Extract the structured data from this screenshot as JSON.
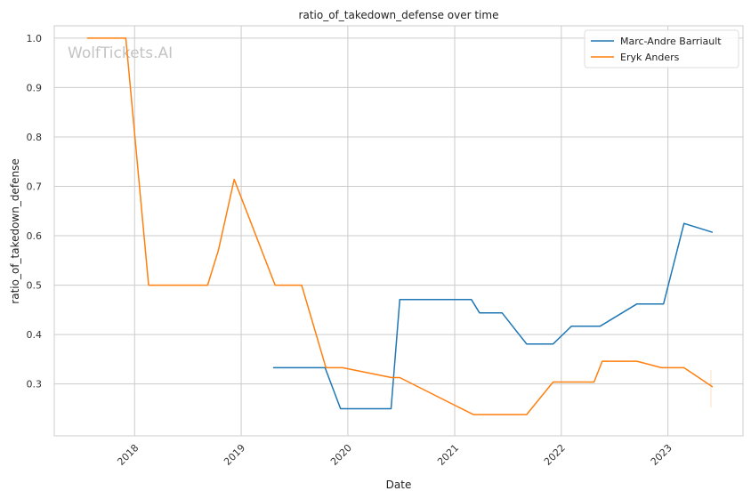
{
  "watermark": "WolfTickets.AI",
  "chart_data": {
    "type": "line",
    "title": "ratio_of_takedown_defense over time",
    "xlabel": "Date",
    "ylabel": "ratio_of_takedown_defense",
    "x_ticks": [
      "2018",
      "2019",
      "2020",
      "2021",
      "2022",
      "2023"
    ],
    "y_ticks": [
      "0.3",
      "0.4",
      "0.5",
      "0.6",
      "0.7",
      "0.8",
      "0.9",
      "1.0"
    ],
    "xlim": [
      "2017-04-01",
      "2023-09-15"
    ],
    "ylim": [
      0.195,
      1.025
    ],
    "grid": true,
    "legend_position": "top-right",
    "series": [
      {
        "name": "Marc-Andre Barriault",
        "color": "#1f77b4",
        "points": [
          [
            "2019-04-20",
            0.333
          ],
          [
            "2019-07-20",
            0.333
          ],
          [
            "2019-10-15",
            0.333
          ],
          [
            "2019-12-07",
            0.25
          ],
          [
            "2020-05-28",
            0.25
          ],
          [
            "2020-06-27",
            0.471
          ],
          [
            "2021-02-27",
            0.471
          ],
          [
            "2021-03-27",
            0.444
          ],
          [
            "2021-06-12",
            0.444
          ],
          [
            "2021-09-04",
            0.381
          ],
          [
            "2021-12-04",
            0.381
          ],
          [
            "2022-02-05",
            0.417
          ],
          [
            "2022-05-14",
            0.417
          ],
          [
            "2022-09-17",
            0.462
          ],
          [
            "2022-12-17",
            0.462
          ],
          [
            "2023-02-25",
            0.625
          ],
          [
            "2023-06-03",
            0.607
          ]
        ]
      },
      {
        "name": "Eryk Anders",
        "color": "#ff7f0e",
        "points": [
          [
            "2017-07-22",
            1.0
          ],
          [
            "2017-10-15",
            1.0
          ],
          [
            "2017-12-02",
            1.0
          ],
          [
            "2018-02-18",
            0.5
          ],
          [
            "2018-05-19",
            0.5
          ],
          [
            "2018-09-08",
            0.5
          ],
          [
            "2018-10-15",
            0.571
          ],
          [
            "2018-12-08",
            0.714
          ],
          [
            "2019-04-27",
            0.5
          ],
          [
            "2019-07-27",
            0.5
          ],
          [
            "2019-10-18",
            0.333
          ],
          [
            "2019-12-14",
            0.333
          ],
          [
            "2020-05-30",
            0.313
          ],
          [
            "2020-06-27",
            0.313
          ],
          [
            "2021-03-06",
            0.238
          ],
          [
            "2021-06-26",
            0.238
          ],
          [
            "2021-09-04",
            0.238
          ],
          [
            "2021-12-04",
            0.304
          ],
          [
            "2022-04-23",
            0.304
          ],
          [
            "2022-05-21",
            0.346
          ],
          [
            "2022-09-17",
            0.346
          ],
          [
            "2022-12-10",
            0.333
          ],
          [
            "2023-02-25",
            0.333
          ],
          [
            "2023-06-03",
            0.294
          ]
        ]
      }
    ]
  }
}
